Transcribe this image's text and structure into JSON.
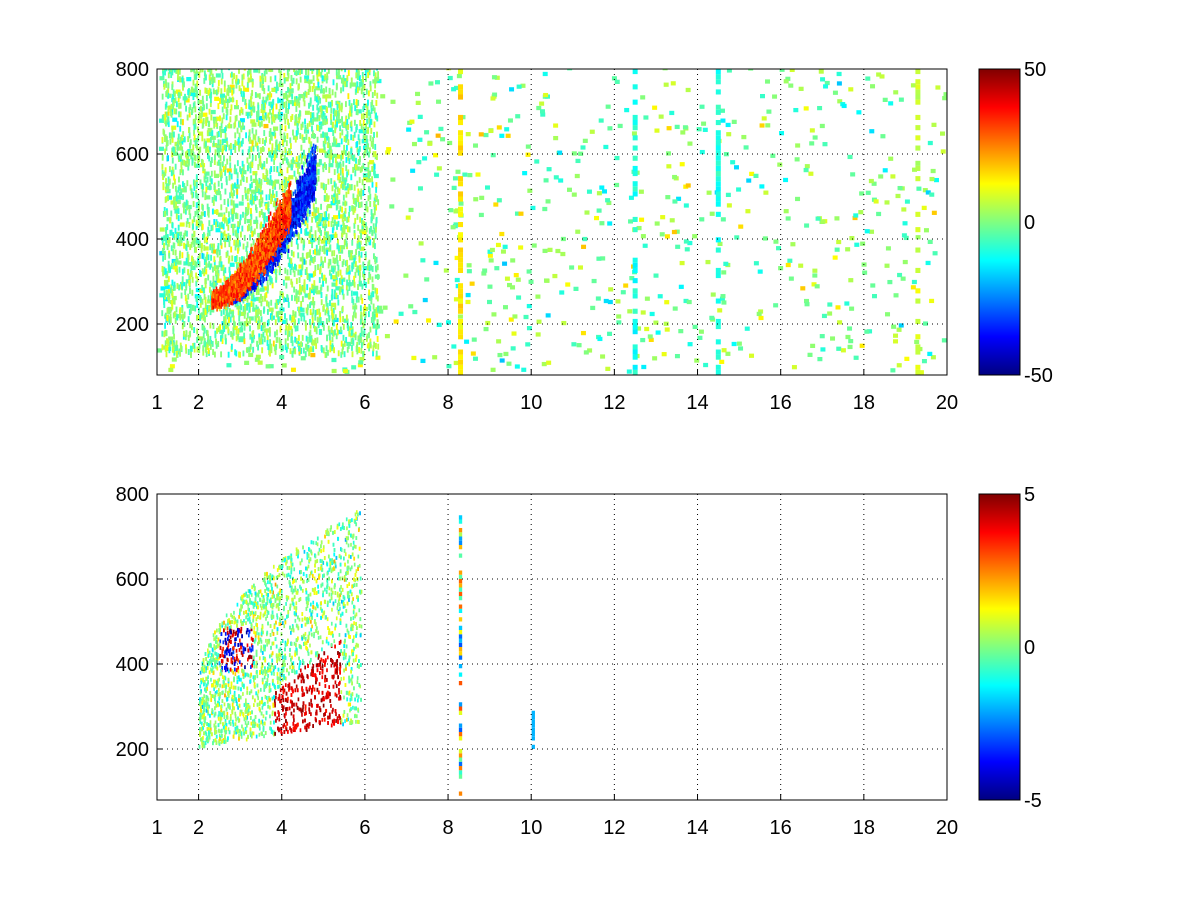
{
  "chart_data": [
    {
      "type": "heatmap",
      "title": "",
      "xlabel": "",
      "ylabel": "",
      "xlim": [
        1,
        20
      ],
      "ylim": [
        80,
        800
      ],
      "x_ticks": [
        1,
        2,
        4,
        6,
        8,
        10,
        12,
        14,
        16,
        18,
        20
      ],
      "y_ticks": [
        200,
        400,
        600,
        800
      ],
      "grid": "dotted",
      "colormap": "jet",
      "colorbar": {
        "range": [
          -50,
          50
        ],
        "ticks": [
          50,
          0,
          -50
        ]
      },
      "features": [
        {
          "kind": "band",
          "x_range": [
            2.6,
            4.8
          ],
          "y_center_start": 260,
          "y_center_end": 560,
          "value": -45,
          "note": "strong negative arc"
        },
        {
          "kind": "band",
          "x_range": [
            2.3,
            4.2
          ],
          "y_center_start": 250,
          "y_center_end": 480,
          "value": 40,
          "note": "strong positive arc"
        },
        {
          "kind": "column",
          "x": 8.3,
          "y_range": [
            80,
            800
          ],
          "value": 15
        },
        {
          "kind": "column",
          "x": 12.5,
          "y_range": [
            80,
            800
          ],
          "value": -10
        },
        {
          "kind": "column",
          "x": 14.5,
          "y_range": [
            80,
            800
          ],
          "value": -10
        },
        {
          "kind": "column",
          "x": 19.3,
          "y_range": [
            80,
            800
          ],
          "value": 8
        }
      ]
    },
    {
      "type": "heatmap",
      "title": "",
      "xlabel": "",
      "ylabel": "",
      "xlim": [
        1,
        20
      ],
      "ylim": [
        80,
        800
      ],
      "x_ticks": [
        1,
        2,
        4,
        6,
        8,
        10,
        12,
        14,
        16,
        18,
        20
      ],
      "y_ticks": [
        200,
        400,
        600,
        800
      ],
      "grid": "dotted",
      "colormap": "jet",
      "colorbar": {
        "range": [
          -5,
          5
        ],
        "ticks": [
          5,
          0,
          -5
        ]
      },
      "features": [
        {
          "kind": "cloud",
          "x_range": [
            2.0,
            5.9
          ],
          "y_range": [
            180,
            780
          ],
          "value_range": [
            -5,
            5
          ]
        },
        {
          "kind": "column",
          "x": 8.3,
          "y_range": [
            80,
            750
          ],
          "value_range": [
            -3,
            3
          ]
        },
        {
          "kind": "column",
          "x": 10.05,
          "y_range": [
            200,
            300
          ],
          "value": -2
        }
      ]
    }
  ]
}
